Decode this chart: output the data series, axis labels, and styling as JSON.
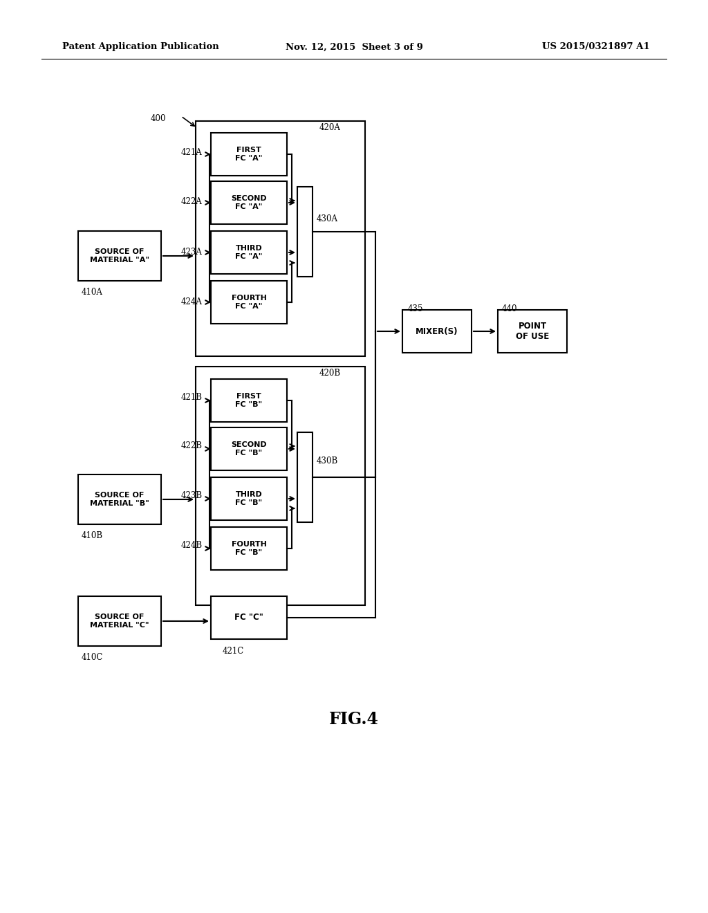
{
  "bg_color": "#ffffff",
  "header_left": "Patent Application Publication",
  "header_mid": "Nov. 12, 2015  Sheet 3 of 9",
  "header_right": "US 2015/0321897 A1",
  "figure_label": "FIG.4"
}
